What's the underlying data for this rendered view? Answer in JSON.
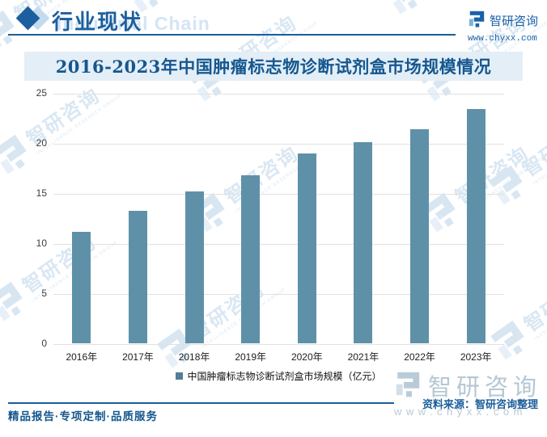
{
  "header": {
    "section_title": "行业现状",
    "section_watermark": "Industrial Chain",
    "brand": {
      "name": "智研咨询",
      "site": "www.chyxx.com"
    }
  },
  "title": "2016-2023年中国肿瘤标志物诊断试剂盒市场规模情况",
  "chart_data": {
    "type": "bar",
    "title": "2016-2023年中国肿瘤标志物诊断试剂盒市场规模情况",
    "categories": [
      "2016年",
      "2017年",
      "2018年",
      "2019年",
      "2020年",
      "2021年",
      "2022年",
      "2023年"
    ],
    "values": [
      11.2,
      13.3,
      15.2,
      16.8,
      19.0,
      20.1,
      21.4,
      23.4
    ],
    "series_name": "中国肿瘤标志物诊断试剂盒市场规模（亿元）",
    "xlabel": "",
    "ylabel": "",
    "ylim": [
      0,
      25
    ],
    "yticks": [
      0,
      5,
      10,
      15,
      20,
      25
    ],
    "grid": true,
    "legend_position": "bottom",
    "bar_color": "#5e91a8"
  },
  "watermark": {
    "brand": "智研咨询",
    "subtext": "INTELLIGENCE RESEARCH GROUP"
  },
  "footer": {
    "tagline": "精品报告·专项定制·品质服务",
    "source": "资料来源：智研咨询整理",
    "watermark_brand": "智研咨询",
    "watermark_site": "www.chyxx.com"
  },
  "colors": {
    "accent": "#1b5e9b",
    "bar": "#5e91a8",
    "band_bg": "#e4eef7",
    "title_text": "#15578f"
  }
}
